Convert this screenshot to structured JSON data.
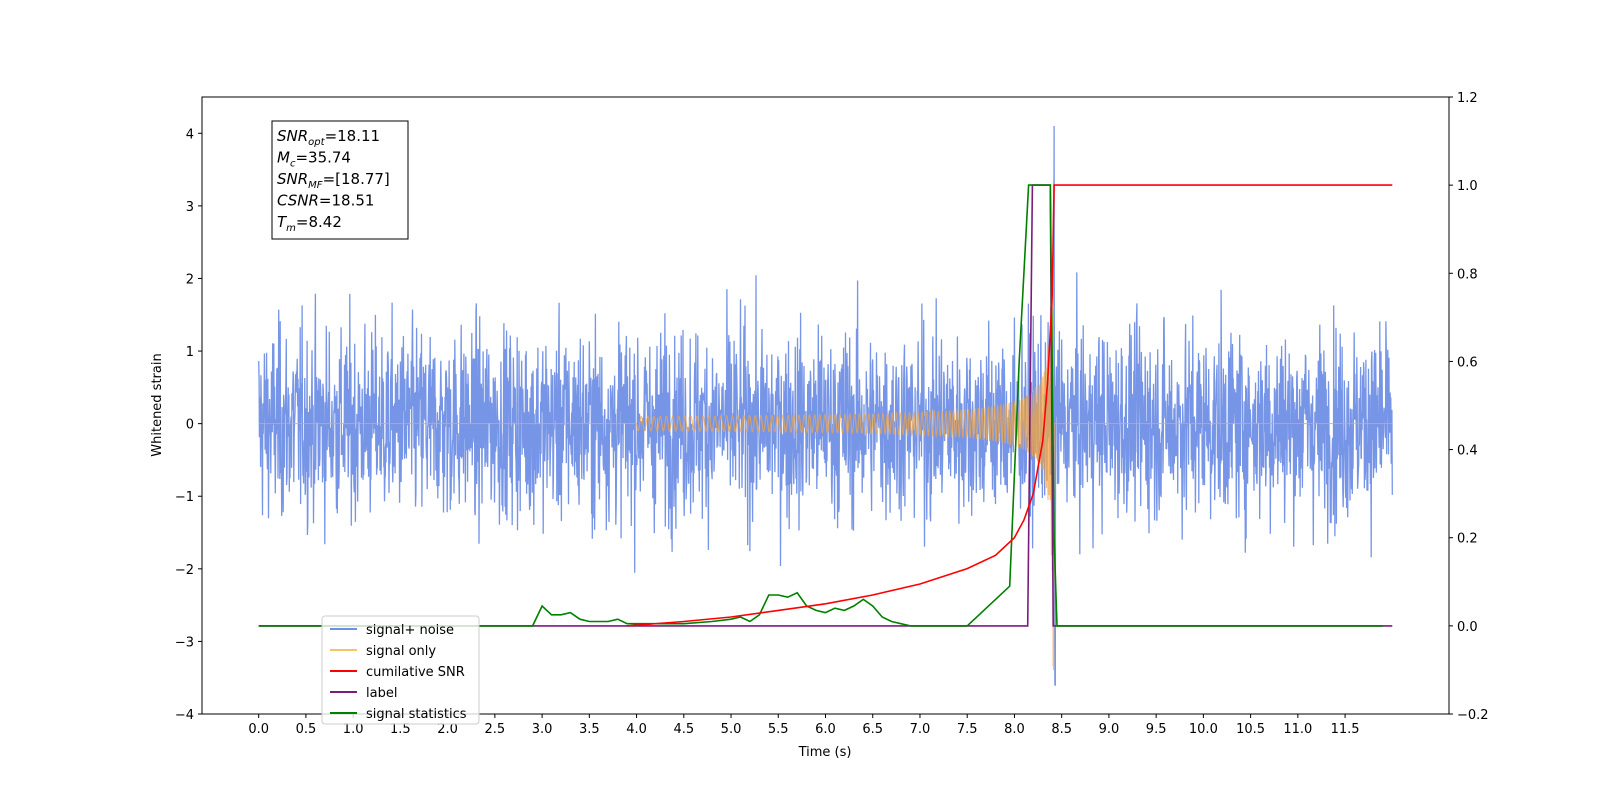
{
  "chart_data": {
    "type": "line",
    "xlabel": "Time (s)",
    "ylabel": "Whitened strain",
    "xlim": [
      -0.6,
      12.6
    ],
    "ylim_left": [
      -4,
      4.5
    ],
    "ylim_right": [
      -0.2,
      1.2
    ],
    "x_ticks": [
      "0.0",
      "0.5",
      "1.0",
      "1.5",
      "2.0",
      "2.5",
      "3.0",
      "3.5",
      "4.0",
      "4.5",
      "5.0",
      "5.5",
      "6.0",
      "6.5",
      "7.0",
      "7.5",
      "8.0",
      "8.5",
      "9.0",
      "9.5",
      "10.0",
      "10.5",
      "11.0",
      "11.5"
    ],
    "y_ticks_left": [
      "4",
      "3",
      "2",
      "1",
      "0",
      "−1",
      "−2",
      "−3",
      "−4"
    ],
    "y_ticks_right": [
      "1.2",
      "1.0",
      "0.8",
      "0.6",
      "0.4",
      "0.2",
      "0.0",
      "−0.2"
    ],
    "annotation": {
      "lines": [
        {
          "var": "SNR",
          "sub": "opt",
          "value": "=18.11"
        },
        {
          "var": "M",
          "sub": "c",
          "value": "=35.74"
        },
        {
          "var": "SNR",
          "sub": "MF",
          "value": "=[18.77]"
        },
        {
          "var": "CSNR",
          "sub": "",
          "value": "=18.51"
        },
        {
          "var": "T",
          "sub": "m",
          "value": "=8.42"
        }
      ]
    },
    "legend": {
      "placement": "lower-left",
      "entries": [
        {
          "label": "signal+ noise",
          "color": "#6f8fe6"
        },
        {
          "label": "signal only",
          "color": "#f5c46a"
        },
        {
          "label": "cumilative SNR",
          "color": "#ff0000"
        },
        {
          "label": "label",
          "color": "#7b1c7b"
        },
        {
          "label": "signal statistics",
          "color": "#008000"
        }
      ]
    },
    "series": [
      {
        "name": "signal+ noise",
        "axis": "left",
        "color": "#6f8fe6",
        "x_range": [
          0,
          12
        ],
        "amplitude_rms": 0.65,
        "peak": 4.1,
        "peak_x": 8.42,
        "min": -3.6
      },
      {
        "name": "signal only",
        "axis": "left",
        "color": "#f5a540",
        "chirp_start": 4.0,
        "chirp_end": 8.42,
        "peak_amplitude": 3.4
      },
      {
        "name": "cumilative SNR",
        "axis": "right",
        "color": "#ff0000",
        "x": [
          3.9,
          4.5,
          5.0,
          5.5,
          6.0,
          6.5,
          7.0,
          7.5,
          7.8,
          8.0,
          8.1,
          8.2,
          8.3,
          8.35,
          8.4,
          8.42,
          12.0
        ],
        "y": [
          0.0,
          0.01,
          0.02,
          0.035,
          0.05,
          0.07,
          0.095,
          0.13,
          0.16,
          0.2,
          0.24,
          0.3,
          0.42,
          0.55,
          0.75,
          1.0,
          1.0
        ]
      },
      {
        "name": "label",
        "axis": "right",
        "color": "#7b1c7b",
        "x": [
          0,
          8.14,
          8.19,
          8.38,
          8.41,
          12.0
        ],
        "y": [
          0,
          0,
          1,
          1,
          0,
          0
        ]
      },
      {
        "name": "signal statistics",
        "axis": "right",
        "color": "#008000",
        "x": [
          0,
          2.9,
          3.0,
          3.1,
          3.2,
          3.3,
          3.4,
          3.5,
          3.6,
          3.7,
          3.8,
          3.9,
          4.0,
          4.2,
          4.5,
          4.8,
          5.0,
          5.1,
          5.2,
          5.3,
          5.4,
          5.5,
          5.6,
          5.7,
          5.8,
          5.9,
          6.0,
          6.1,
          6.2,
          6.3,
          6.4,
          6.5,
          6.6,
          6.7,
          6.9,
          7.5,
          7.95,
          8.05,
          8.15,
          8.2,
          8.38,
          8.42,
          8.45,
          8.5,
          11.9
        ],
        "y": [
          0,
          0,
          0.045,
          0.025,
          0.025,
          0.03,
          0.015,
          0.01,
          0.01,
          0.01,
          0.015,
          0.005,
          0.005,
          0.005,
          0.005,
          0.01,
          0.015,
          0.02,
          0.01,
          0.025,
          0.07,
          0.07,
          0.065,
          0.075,
          0.045,
          0.035,
          0.03,
          0.04,
          0.035,
          0.045,
          0.06,
          0.045,
          0.02,
          0.01,
          0.0,
          0.0,
          0.09,
          0.6,
          1.0,
          1.0,
          1.0,
          0.2,
          0.0,
          0.0,
          0.0
        ]
      }
    ]
  }
}
